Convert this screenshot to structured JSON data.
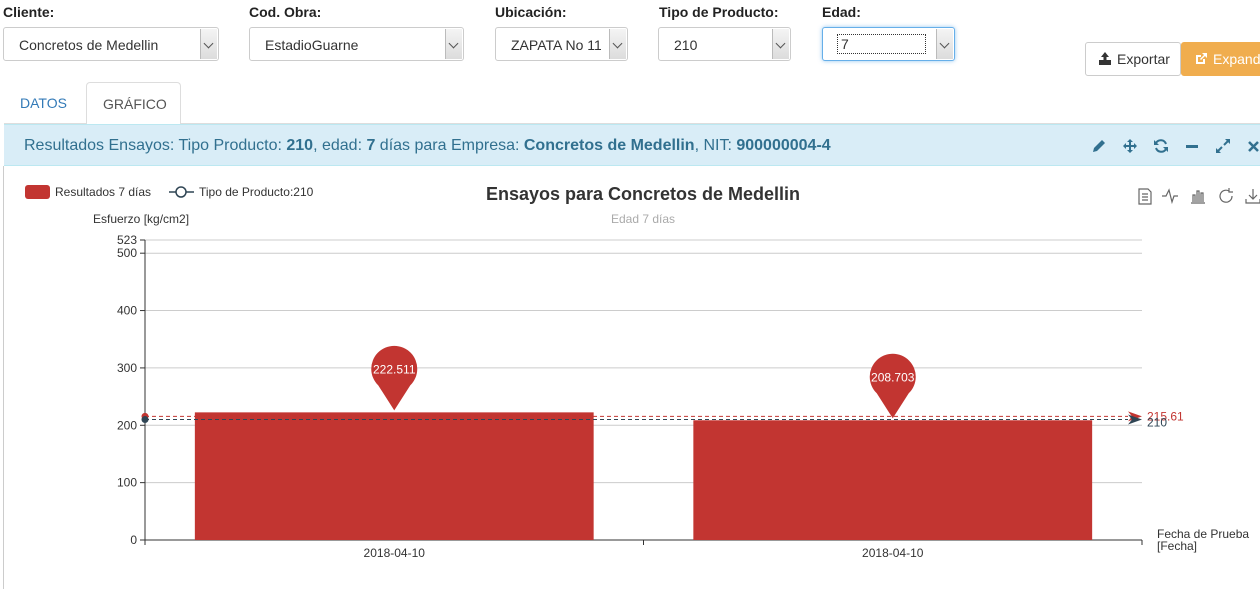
{
  "filters": {
    "cliente": {
      "label": "Cliente:",
      "value": "Concretos de Medellin"
    },
    "obra": {
      "label": "Cod. Obra:",
      "value": "EstadioGuarne"
    },
    "ubicacion": {
      "label": "Ubicación:",
      "value": "ZAPATA No 11"
    },
    "producto": {
      "label": "Tipo de Producto:",
      "value": "210"
    },
    "edad": {
      "label": "Edad:",
      "value": "7"
    }
  },
  "actions": {
    "export": "Exportar",
    "expand": "Expand"
  },
  "tabs": [
    {
      "label": "DATOS"
    },
    {
      "label": "GRÁFICO"
    }
  ],
  "panel": {
    "t1": "Resultados Ensayos: Tipo Producto: ",
    "producto": "210",
    "t2": ", edad: ",
    "edad": "7",
    "t3": " días para Empresa: ",
    "empresa": "Concretos de Medellin",
    "t4": ", NIT: ",
    "nit": "900000004-4",
    "tools": [
      "pencil-icon",
      "move-icon",
      "refresh-icon",
      "minimize-icon",
      "expand-icon",
      "close-icon"
    ]
  },
  "chart_data": {
    "type": "bar",
    "title": "Ensayos para Concretos de Medellin",
    "subtitle": "Edad 7 días",
    "ylabel": "Esfuerzo [kg/cm2]",
    "xlabel": "Fecha de Prueba\n[Fecha]",
    "ylim": [
      0,
      523
    ],
    "yticks": [
      0,
      100,
      200,
      300,
      400,
      500,
      523
    ],
    "categories": [
      "2018-04-10",
      "2018-04-10"
    ],
    "series": [
      {
        "name": "Resultados 7  días",
        "type": "bar",
        "color": "#c23531",
        "values": [
          222.511,
          208.703
        ]
      },
      {
        "name": "Tipo de Producto:210",
        "type": "line",
        "color": "#2f4554",
        "values": [
          210,
          210
        ]
      }
    ],
    "markLines": [
      {
        "value": 215.61,
        "label": "215.61",
        "color": "#c23531"
      },
      {
        "value": 210,
        "label": "210",
        "color": "#2f4554"
      }
    ],
    "legend_position": "top-left",
    "grid": true,
    "toolbox": [
      "data-view-icon",
      "line-view-icon",
      "bar-view-icon",
      "restore-icon",
      "save-image-icon"
    ]
  }
}
